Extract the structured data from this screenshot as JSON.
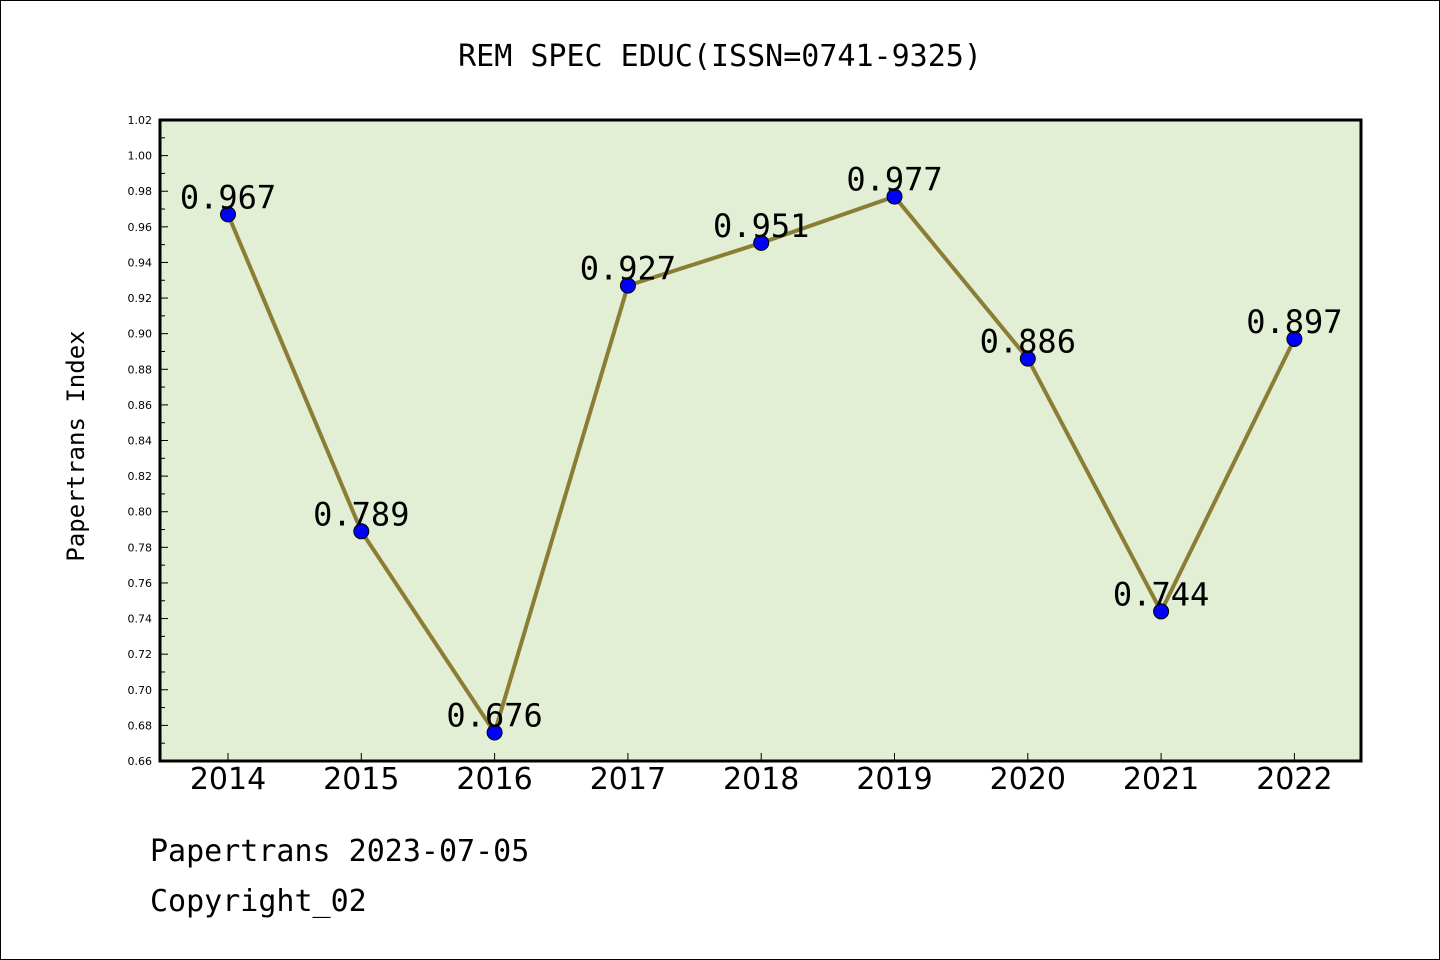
{
  "chart_data": {
    "type": "line",
    "title": "REM SPEC EDUC(ISSN=0741-9325)",
    "ylabel": "Papertrans Index",
    "xlabel": "",
    "categories": [
      "2014",
      "2015",
      "2016",
      "2017",
      "2018",
      "2019",
      "2020",
      "2021",
      "2022"
    ],
    "series": [
      {
        "values": [
          0.967,
          0.789,
          0.676,
          0.927,
          0.951,
          0.977,
          0.886,
          0.744,
          0.897
        ],
        "labels": [
          "0.967",
          "0.789",
          "0.676",
          "0.927",
          "0.951",
          "0.977",
          "0.886",
          "0.744",
          "0.897"
        ]
      }
    ],
    "ylim": [
      0.66,
      1.02
    ],
    "yticks": [
      "0.66",
      "0.68",
      "0.70",
      "0.72",
      "0.74",
      "0.76",
      "0.78",
      "0.80",
      "0.82",
      "0.84",
      "0.86",
      "0.88",
      "0.90",
      "0.92",
      "0.94",
      "0.96",
      "0.98",
      "1.00",
      "1.02"
    ],
    "grid": false,
    "colors": {
      "plot_background": "#e2efd5",
      "line": "#8b7d35",
      "marker": "#0000ff"
    }
  },
  "footer": {
    "line1": "Papertrans 2023-07-05",
    "line2": "Copyright_02"
  }
}
